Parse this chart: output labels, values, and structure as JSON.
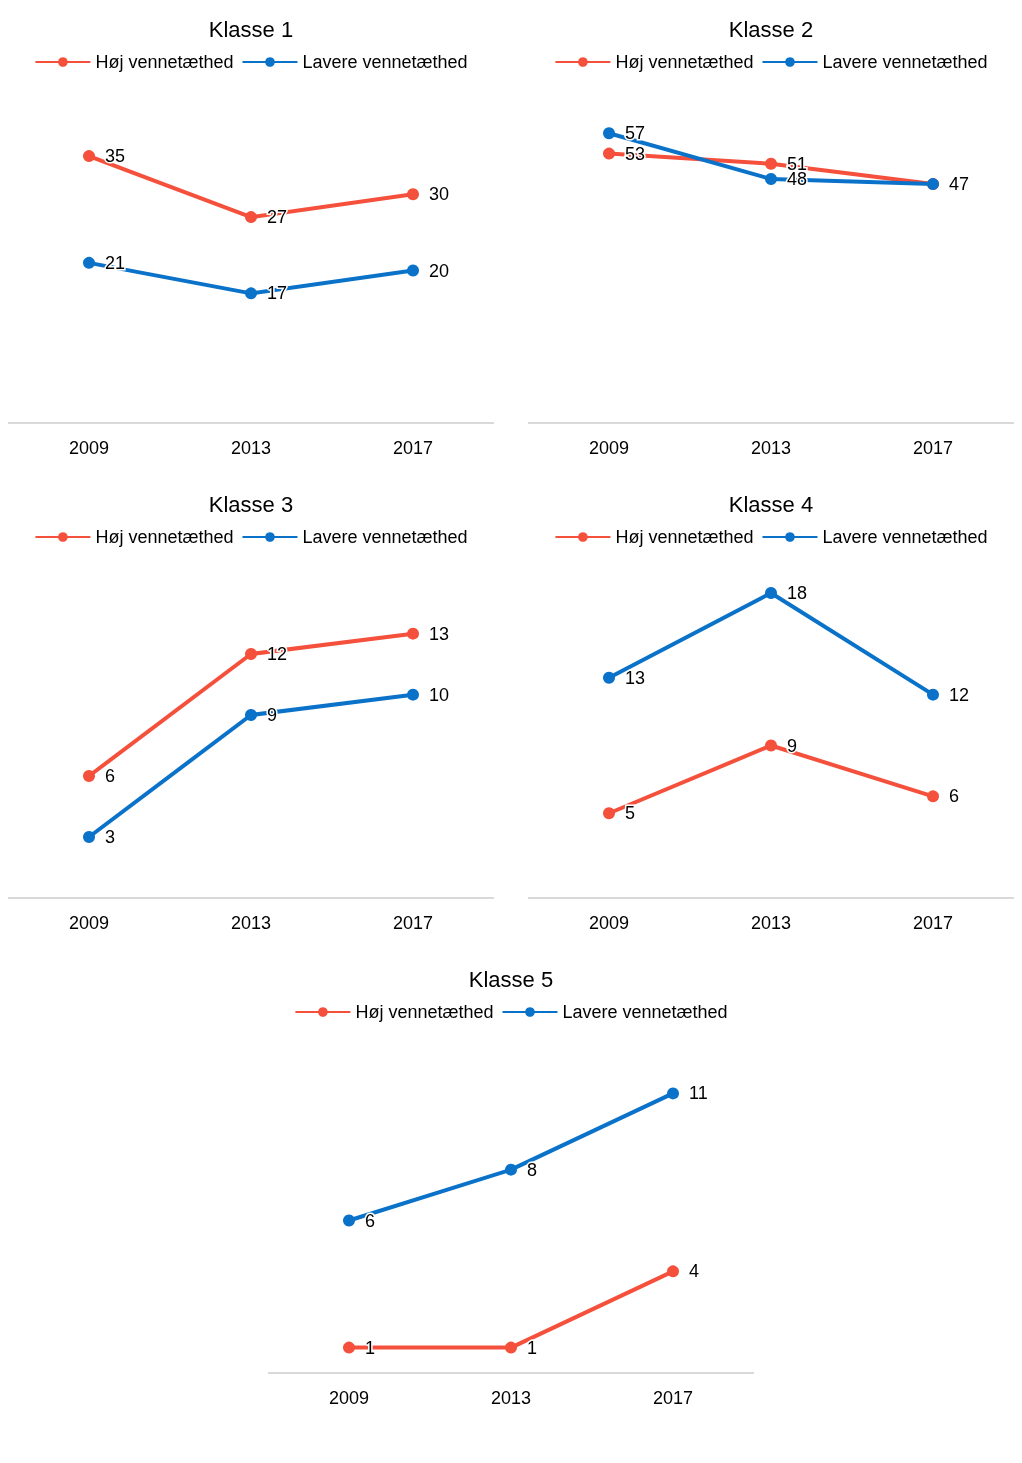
{
  "chart_data": [
    {
      "type": "line",
      "title": "Klasse 1",
      "categories": [
        "2009",
        "2013",
        "2017"
      ],
      "series": [
        {
          "name": "Høj vennetæthed",
          "color": "#f5503c",
          "values": [
            35,
            27,
            30
          ]
        },
        {
          "name": "Lavere vennetæthed",
          "color": "#0a72c8",
          "values": [
            21,
            17,
            20
          ]
        }
      ],
      "data_labels": true,
      "legend": "top",
      "marker": "circle",
      "grid": false,
      "tick_labels": "x"
    },
    {
      "type": "line",
      "title": "Klasse 2",
      "categories": [
        "2009",
        "2013",
        "2017"
      ],
      "series": [
        {
          "name": "Høj vennetæthed",
          "color": "#f5503c",
          "values": [
            53,
            51,
            47
          ]
        },
        {
          "name": "Lavere vennetæthed",
          "color": "#0a72c8",
          "values": [
            57,
            48,
            47
          ],
          "value_labels": [
            "57",
            "48",
            null
          ]
        }
      ],
      "data_labels": true,
      "legend": "top",
      "marker": "circle",
      "grid": false,
      "tick_labels": "x"
    },
    {
      "type": "line",
      "title": "Klasse 3",
      "categories": [
        "2009",
        "2013",
        "2017"
      ],
      "series": [
        {
          "name": "Høj vennetæthed",
          "color": "#f5503c",
          "values": [
            6,
            12,
            13
          ]
        },
        {
          "name": "Lavere vennetæthed",
          "color": "#0a72c8",
          "values": [
            3,
            9,
            10
          ]
        }
      ],
      "data_labels": true,
      "legend": "top",
      "marker": "circle",
      "grid": false,
      "tick_labels": "x"
    },
    {
      "type": "line",
      "title": "Klasse 4",
      "categories": [
        "2009",
        "2013",
        "2017"
      ],
      "series": [
        {
          "name": "Høj vennetæthed",
          "color": "#f5503c",
          "values": [
            5,
            9,
            6
          ]
        },
        {
          "name": "Lavere vennetæthed",
          "color": "#0a72c8",
          "values": [
            13,
            18,
            12
          ]
        }
      ],
      "data_labels": true,
      "legend": "top",
      "marker": "circle",
      "grid": false,
      "tick_labels": "x"
    },
    {
      "type": "line",
      "title": "Klasse 5",
      "categories": [
        "2009",
        "2013",
        "2017"
      ],
      "series": [
        {
          "name": "Høj vennetæthed",
          "color": "#f5503c",
          "values": [
            1,
            1,
            4
          ]
        },
        {
          "name": "Lavere vennetæthed",
          "color": "#0a72c8",
          "values": [
            6,
            8,
            11
          ]
        }
      ],
      "data_labels": true,
      "legend": "top",
      "marker": "circle",
      "grid": false,
      "tick_labels": "x"
    }
  ]
}
